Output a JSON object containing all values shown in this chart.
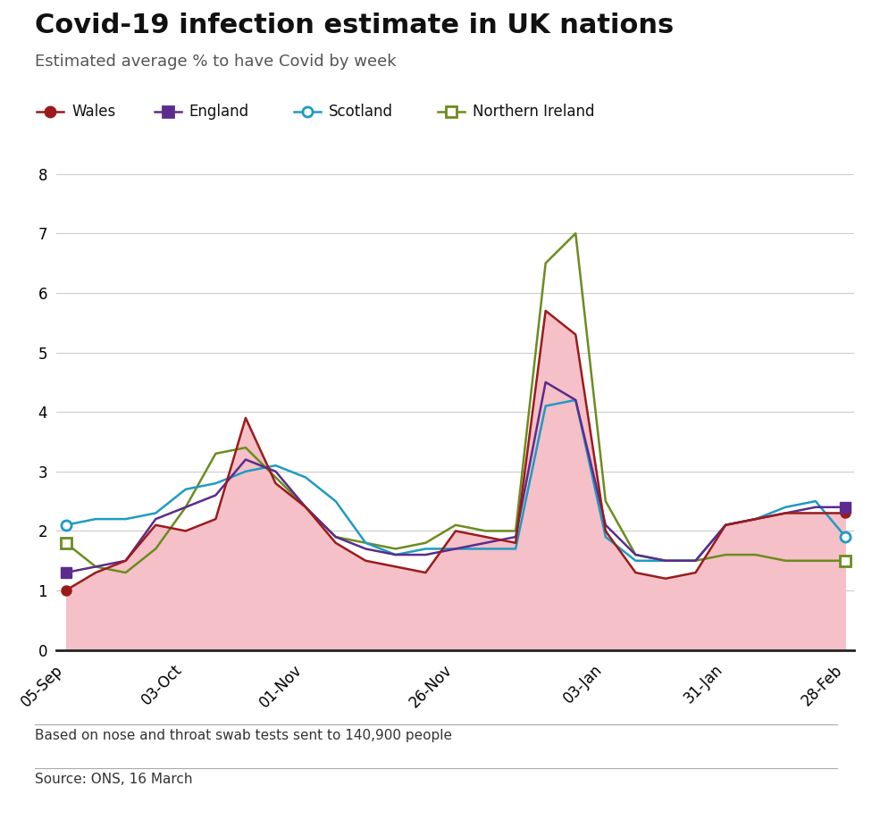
{
  "title": "Covid-19 infection estimate in UK nations",
  "subtitle": "Estimated average % to have Covid by week",
  "footnote": "Based on nose and throat swab tests sent to 140,900 people",
  "source": "Source: ONS, 16 March",
  "x_labels": [
    "05-Sep",
    "03-Oct",
    "01-Nov",
    "26-Nov",
    "03-Jan",
    "31-Jan",
    "28-Feb"
  ],
  "x_indices": [
    0,
    4,
    8,
    13,
    18,
    22,
    26
  ],
  "wales": [
    1.0,
    1.3,
    1.5,
    2.1,
    2.0,
    2.2,
    3.9,
    2.8,
    2.4,
    1.8,
    1.5,
    1.4,
    1.3,
    2.0,
    1.9,
    1.8,
    5.7,
    5.3,
    2.0,
    1.3,
    1.2,
    1.3,
    2.1,
    2.2,
    2.3,
    2.3,
    2.3
  ],
  "england": [
    1.3,
    1.4,
    1.5,
    2.2,
    2.4,
    2.6,
    3.2,
    3.0,
    2.4,
    1.9,
    1.7,
    1.6,
    1.6,
    1.7,
    1.8,
    1.9,
    4.5,
    4.2,
    2.1,
    1.6,
    1.5,
    1.5,
    2.1,
    2.2,
    2.3,
    2.4,
    2.4
  ],
  "scotland": [
    2.1,
    2.2,
    2.2,
    2.3,
    2.7,
    2.8,
    3.0,
    3.1,
    2.9,
    2.5,
    1.8,
    1.6,
    1.7,
    1.7,
    1.7,
    1.7,
    4.1,
    4.2,
    1.9,
    1.5,
    1.5,
    1.5,
    2.1,
    2.2,
    2.4,
    2.5,
    1.9
  ],
  "northern_ireland": [
    1.8,
    1.4,
    1.3,
    1.7,
    2.4,
    3.3,
    3.4,
    2.9,
    2.4,
    1.9,
    1.8,
    1.7,
    1.8,
    2.1,
    2.0,
    2.0,
    6.5,
    7.0,
    2.5,
    1.6,
    1.5,
    1.5,
    1.6,
    1.6,
    1.5,
    1.5,
    1.5
  ],
  "wales_color": "#9B1B1B",
  "england_color": "#5B2C8D",
  "scotland_color": "#1E9BC2",
  "northern_ireland_color": "#6B8C1E",
  "fill_color": "#F5C0C8",
  "fill_alpha": 1.0,
  "ylim": [
    0,
    8
  ],
  "yticks": [
    0,
    1,
    2,
    3,
    4,
    5,
    6,
    7,
    8
  ],
  "background_color": "#FFFFFF",
  "grid_color": "#CCCCCC",
  "title_fontsize": 22,
  "subtitle_fontsize": 13,
  "label_fontsize": 12,
  "tick_fontsize": 12
}
